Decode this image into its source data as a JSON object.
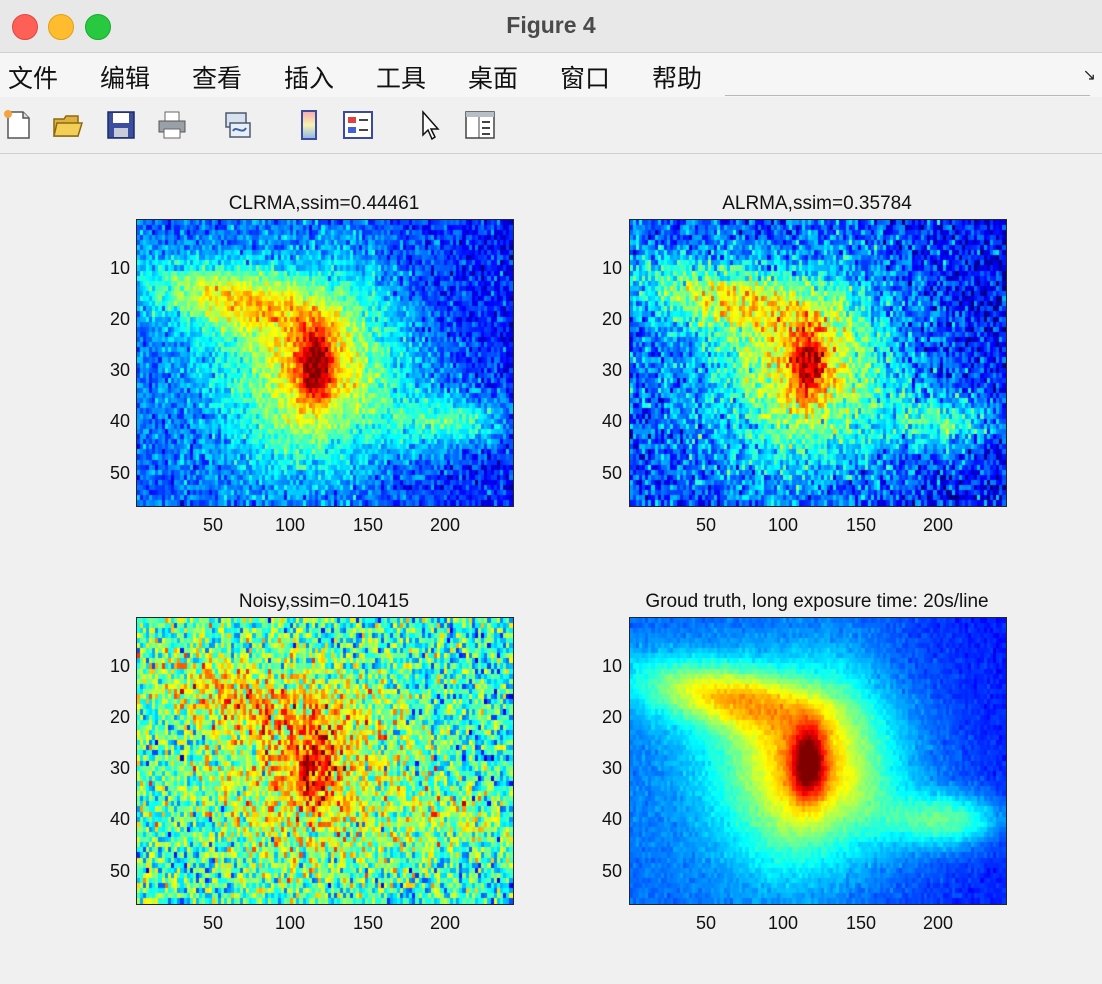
{
  "window": {
    "title": "Figure 4"
  },
  "menu": [
    "文件",
    "编辑",
    "查看",
    "插入",
    "工具",
    "桌面",
    "窗口",
    "帮助"
  ],
  "toolbar": {
    "icons": [
      "new-figure-icon",
      "open-file-icon",
      "save-icon",
      "print-icon",
      "link-plot-icon",
      "colorbar-icon",
      "legend-icon",
      "pointer-icon",
      "property-editor-icon"
    ]
  },
  "colors": {
    "background": "#f0f0f0",
    "colormap": "jet"
  },
  "chart_data": [
    {
      "type": "heatmap",
      "title": "CLRMA,ssim=0.44461",
      "xticks": [
        "50",
        "100",
        "150",
        "200"
      ],
      "yticks": [
        "10",
        "20",
        "30",
        "40",
        "50"
      ],
      "xlim": [
        1,
        241
      ],
      "ylim": [
        1,
        56
      ]
    },
    {
      "type": "heatmap",
      "title": "ALRMA,ssim=0.35784",
      "xticks": [
        "50",
        "100",
        "150",
        "200"
      ],
      "yticks": [
        "10",
        "20",
        "30",
        "40",
        "50"
      ],
      "xlim": [
        1,
        241
      ],
      "ylim": [
        1,
        56
      ]
    },
    {
      "type": "heatmap",
      "title": "Noisy,ssim=0.10415",
      "xticks": [
        "50",
        "100",
        "150",
        "200"
      ],
      "yticks": [
        "10",
        "20",
        "30",
        "40",
        "50"
      ],
      "xlim": [
        1,
        241
      ],
      "ylim": [
        1,
        56
      ]
    },
    {
      "type": "heatmap",
      "title": "Groud truth, long exposure time: 20s/line",
      "xticks": [
        "50",
        "100",
        "150",
        "200"
      ],
      "yticks": [
        "10",
        "20",
        "30",
        "40",
        "50"
      ],
      "xlim": [
        1,
        241
      ],
      "ylim": [
        1,
        56
      ]
    }
  ]
}
